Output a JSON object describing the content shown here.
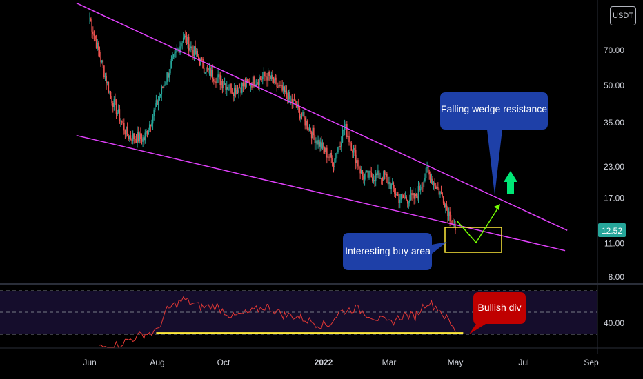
{
  "currency": "USDT",
  "last_price": "12.52",
  "colors": {
    "up": "#26a69a",
    "down": "#ef5350",
    "trendline": "#e040fb",
    "rsi_line": "#e53935",
    "rsi_support": "#ffeb3b",
    "buy_box": "#ffeb3b",
    "projection": "#76ff03",
    "arrow": "#00e676",
    "callout_blue": "#1e40a8",
    "callout_red": "#c00000",
    "price_badge": "#26a69a"
  },
  "annotations": {
    "resistance": "Falling wedge resistance",
    "buy_area": "Interesting buy area",
    "divergence": "Bullish div"
  },
  "chart_data": [
    {
      "type": "candlestick",
      "title": "",
      "scale": "log",
      "x_ticks": [
        "Jun",
        "Aug",
        "Oct",
        "2022",
        "Mar",
        "May",
        "Jul",
        "Sep"
      ],
      "y_ticks": [
        "70.00",
        "50.00",
        "35.00",
        "23.00",
        "17.00",
        "11.00",
        "8.00"
      ],
      "ylim": [
        7.5,
        110
      ],
      "trend": [
        [
          "2021-06-01",
          95
        ],
        [
          "2021-06-20",
          45
        ],
        [
          "2021-07-05",
          31
        ],
        [
          "2021-07-20",
          30
        ],
        [
          "2021-08-10",
          55
        ],
        [
          "2021-08-25",
          80
        ],
        [
          "2021-09-15",
          58
        ],
        [
          "2021-10-10",
          48
        ],
        [
          "2021-11-10",
          55
        ],
        [
          "2021-12-05",
          42
        ],
        [
          "2021-12-25",
          30
        ],
        [
          "2022-01-10",
          24
        ],
        [
          "2022-01-20",
          34
        ],
        [
          "2022-02-05",
          21
        ],
        [
          "2022-02-25",
          21
        ],
        [
          "2022-03-10",
          17
        ],
        [
          "2022-03-25",
          17
        ],
        [
          "2022-04-05",
          22
        ],
        [
          "2022-04-20",
          17
        ],
        [
          "2022-05-01",
          12.52
        ]
      ],
      "lines": [
        {
          "name": "Falling wedge resistance",
          "points": [
            [
              "2021-05-20",
              110
            ],
            [
              "2022-08-10",
              12.5
            ]
          ]
        },
        {
          "name": "Support",
          "points": [
            [
              "2021-05-20",
              31
            ],
            [
              "2022-08-08",
              10.3
            ]
          ]
        }
      ]
    },
    {
      "type": "line",
      "title": "",
      "y_ticks": [
        "40.00"
      ],
      "ylim": [
        0,
        100
      ],
      "levels": [
        70,
        50,
        30
      ],
      "points": [
        [
          "2021-06-10",
          18
        ],
        [
          "2021-06-25",
          20
        ],
        [
          "2021-07-05",
          24
        ],
        [
          "2021-07-20",
          30
        ],
        [
          "2021-07-31",
          32
        ],
        [
          "2021-08-10",
          52
        ],
        [
          "2021-08-25",
          62
        ],
        [
          "2021-09-10",
          55
        ],
        [
          "2021-09-25",
          56
        ],
        [
          "2021-10-10",
          46
        ],
        [
          "2021-10-25",
          50
        ],
        [
          "2021-11-10",
          56
        ],
        [
          "2021-11-25",
          48
        ],
        [
          "2021-12-10",
          46
        ],
        [
          "2021-12-25",
          40
        ],
        [
          "2022-01-05",
          38
        ],
        [
          "2022-01-15",
          50
        ],
        [
          "2022-01-30",
          54
        ],
        [
          "2022-02-15",
          46
        ],
        [
          "2022-03-01",
          40
        ],
        [
          "2022-03-15",
          48
        ],
        [
          "2022-03-25",
          46
        ],
        [
          "2022-04-05",
          60
        ],
        [
          "2022-04-15",
          54
        ],
        [
          "2022-04-25",
          42
        ],
        [
          "2022-05-01",
          32
        ]
      ],
      "support": [
        [
          "2021-07-31",
          31
        ],
        [
          "2022-05-08",
          31
        ]
      ]
    }
  ]
}
